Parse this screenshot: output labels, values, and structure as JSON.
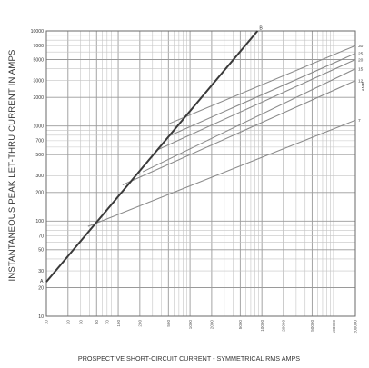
{
  "chart_data": {
    "type": "line",
    "xlabel": "PROSPECTIVE SHORT-CIRCUIT CURRENT - SYMMETRICAL RMS AMPS",
    "ylabel": "INSTANTANEOUS PEAK LET-THRU CURRENT IN AMPS",
    "x_scale": "log",
    "y_scale": "log",
    "xlim": [
      10,
      200000
    ],
    "ylim": [
      10,
      10000
    ],
    "grid": true,
    "x_ticks": [
      "10",
      "20",
      "30",
      "50",
      "70",
      "100",
      "200",
      "500",
      "1000",
      "2000",
      "5000",
      "10000",
      "20000",
      "50000",
      "100000",
      "200000"
    ],
    "y_ticks": [
      "10",
      "20",
      "30",
      "50",
      "70",
      "100",
      "200",
      "300",
      "500",
      "700",
      "1000",
      "2000",
      "3000",
      "5000",
      "7000",
      "10000"
    ],
    "reference_line": {
      "label_start": "A",
      "label_end": "B",
      "x": [
        10,
        8700
      ],
      "y": [
        23,
        10000
      ]
    },
    "series": [
      {
        "name": "30",
        "x": [
          500,
          200000
        ],
        "y": [
          1050,
          7000
        ]
      },
      {
        "name": "25",
        "x": [
          500,
          200000
        ],
        "y": [
          780,
          5800
        ]
      },
      {
        "name": "20",
        "x": [
          350,
          200000
        ],
        "y": [
          560,
          5000
        ]
      },
      {
        "name": "15",
        "x": [
          220,
          200000
        ],
        "y": [
          330,
          4000
        ]
      },
      {
        "name": "12",
        "x": [
          115,
          200000
        ],
        "y": [
          240,
          3000
        ]
      },
      {
        "name": "7",
        "x": [
          38,
          200000
        ],
        "y": [
          88,
          1150
        ]
      }
    ],
    "curve_label_suffix": "AMP"
  }
}
